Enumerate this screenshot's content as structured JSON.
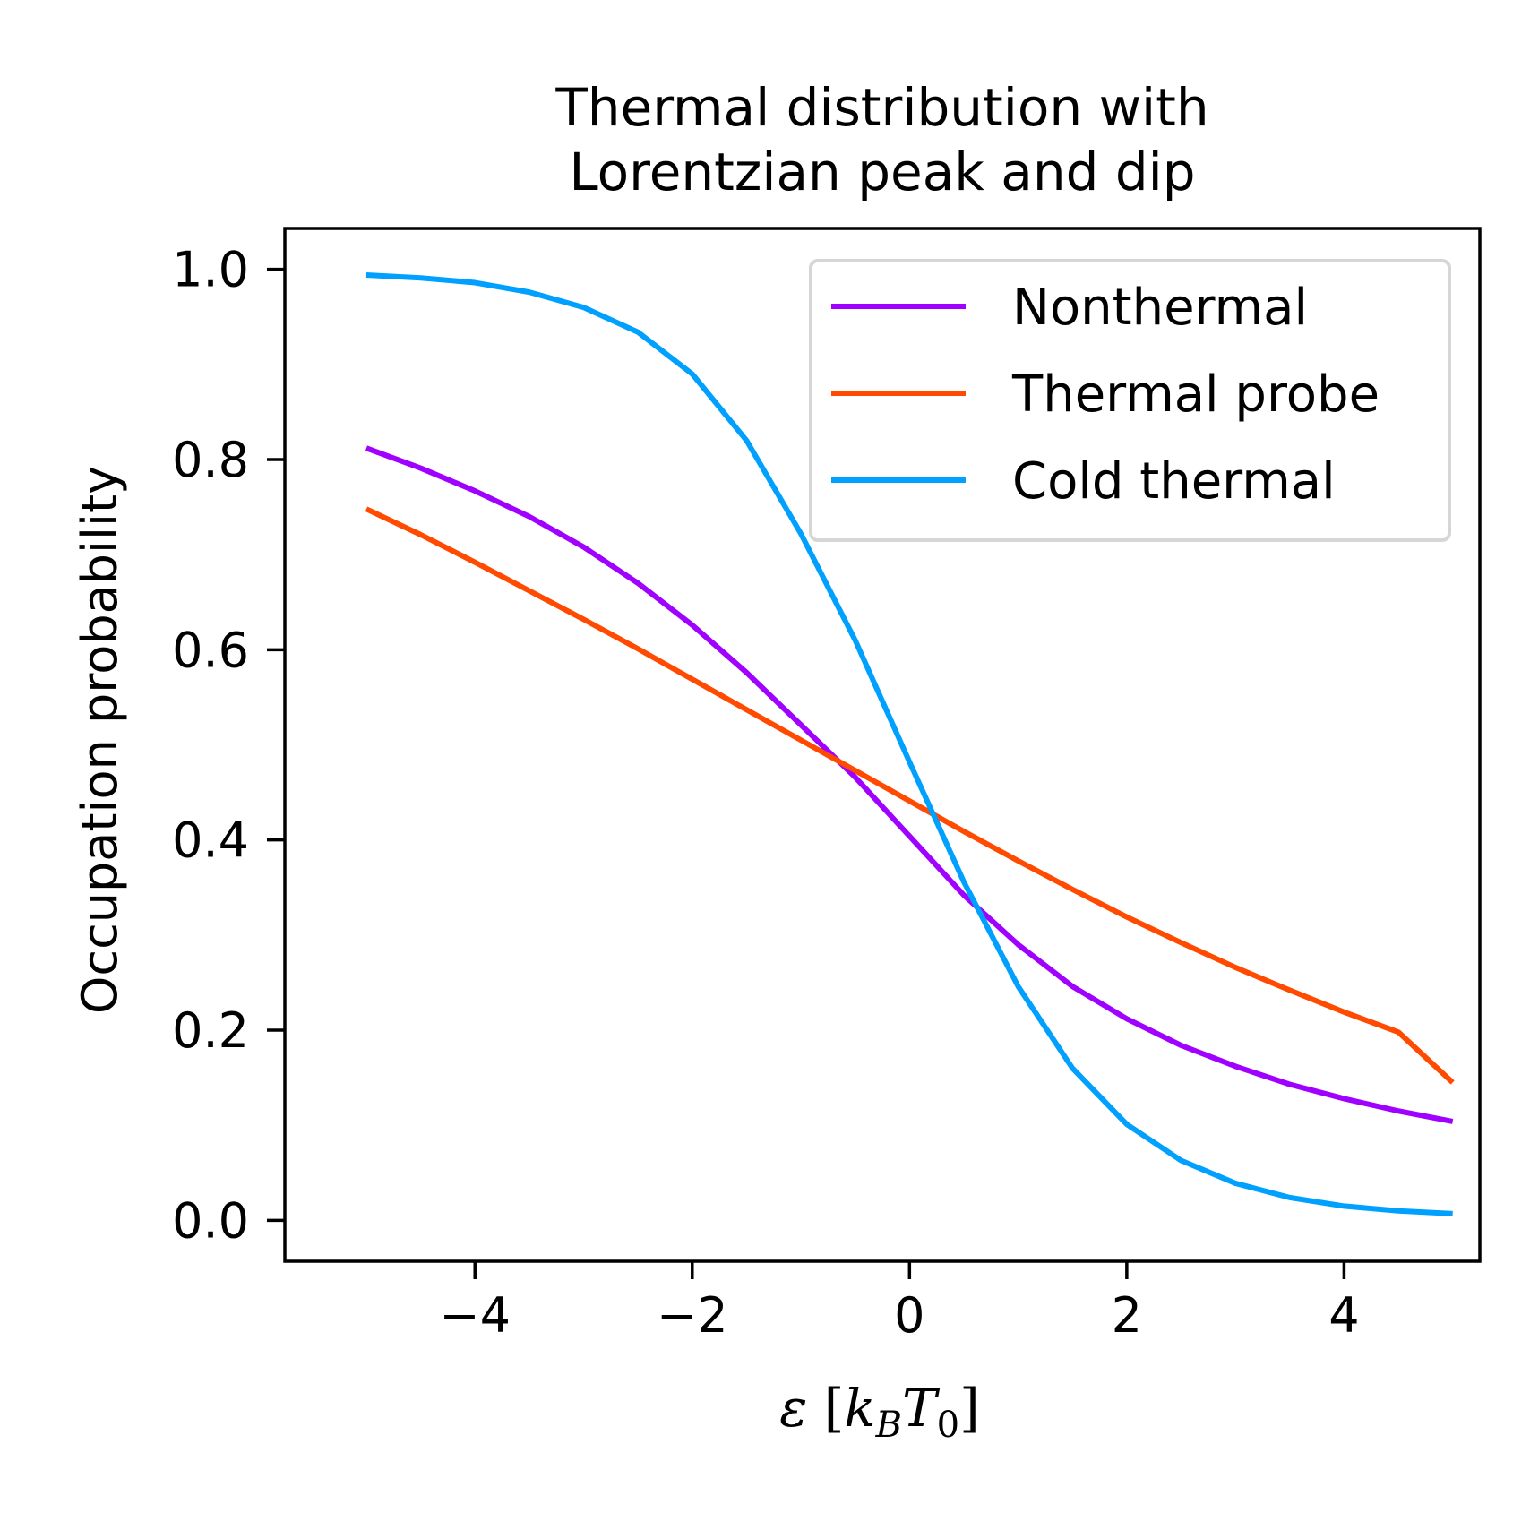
{
  "chart_data": {
    "type": "line",
    "title_lines": [
      "Thermal distribution with",
      "Lorentzian peak and dip"
    ],
    "xlabel": "ε [k_B T_0]",
    "xlabel_parts": {
      "eps": "ε",
      "open": " [",
      "k": "k",
      "B": "B",
      "T": "T",
      "zero": "0",
      "close": "]"
    },
    "ylabel": "Occupation probability",
    "xlim": [
      -5.75,
      5.25
    ],
    "ylim": [
      -0.043,
      1.043
    ],
    "x_ticks": [
      -4,
      -2,
      0,
      2,
      4
    ],
    "x_tick_labels": [
      "−4",
      "−2",
      "0",
      "2",
      "4"
    ],
    "y_ticks": [
      0.0,
      0.2,
      0.4,
      0.6,
      0.8,
      1.0
    ],
    "y_tick_labels": [
      "0.0",
      "0.2",
      "0.4",
      "0.6",
      "0.8",
      "1.0"
    ],
    "grid": false,
    "legend_position": "top-right",
    "x": [
      -5.0,
      -4.5,
      -4.0,
      -3.5,
      -3.0,
      -2.5,
      -2.0,
      -1.5,
      -1.0,
      -0.5,
      0.0,
      0.5,
      1.0,
      1.5,
      2.0,
      2.5,
      3.0,
      3.5,
      4.0,
      4.5,
      5.0
    ],
    "series": [
      {
        "name": "Nonthermal",
        "color": "#a000ff",
        "values": [
          0.812,
          0.791,
          0.767,
          0.74,
          0.708,
          0.67,
          0.626,
          0.576,
          0.521,
          0.466,
          0.404,
          0.342,
          0.29,
          0.246,
          0.212,
          0.184,
          0.162,
          0.143,
          0.128,
          0.115,
          0.104
        ]
      },
      {
        "name": "Thermal probe",
        "color": "#ff4a00",
        "values": [
          0.748,
          0.721,
          0.692,
          0.662,
          0.632,
          0.601,
          0.569,
          0.537,
          0.505,
          0.473,
          0.441,
          0.409,
          0.378,
          0.348,
          0.319,
          0.292,
          0.266,
          0.242,
          0.219,
          0.198,
          0.145
        ]
      },
      {
        "name": "Cold thermal",
        "color": "#00a0ff",
        "values": [
          0.994,
          0.991,
          0.986,
          0.976,
          0.96,
          0.934,
          0.89,
          0.82,
          0.722,
          0.61,
          0.482,
          0.356,
          0.246,
          0.16,
          0.101,
          0.063,
          0.039,
          0.024,
          0.015,
          0.01,
          0.007
        ]
      }
    ]
  }
}
